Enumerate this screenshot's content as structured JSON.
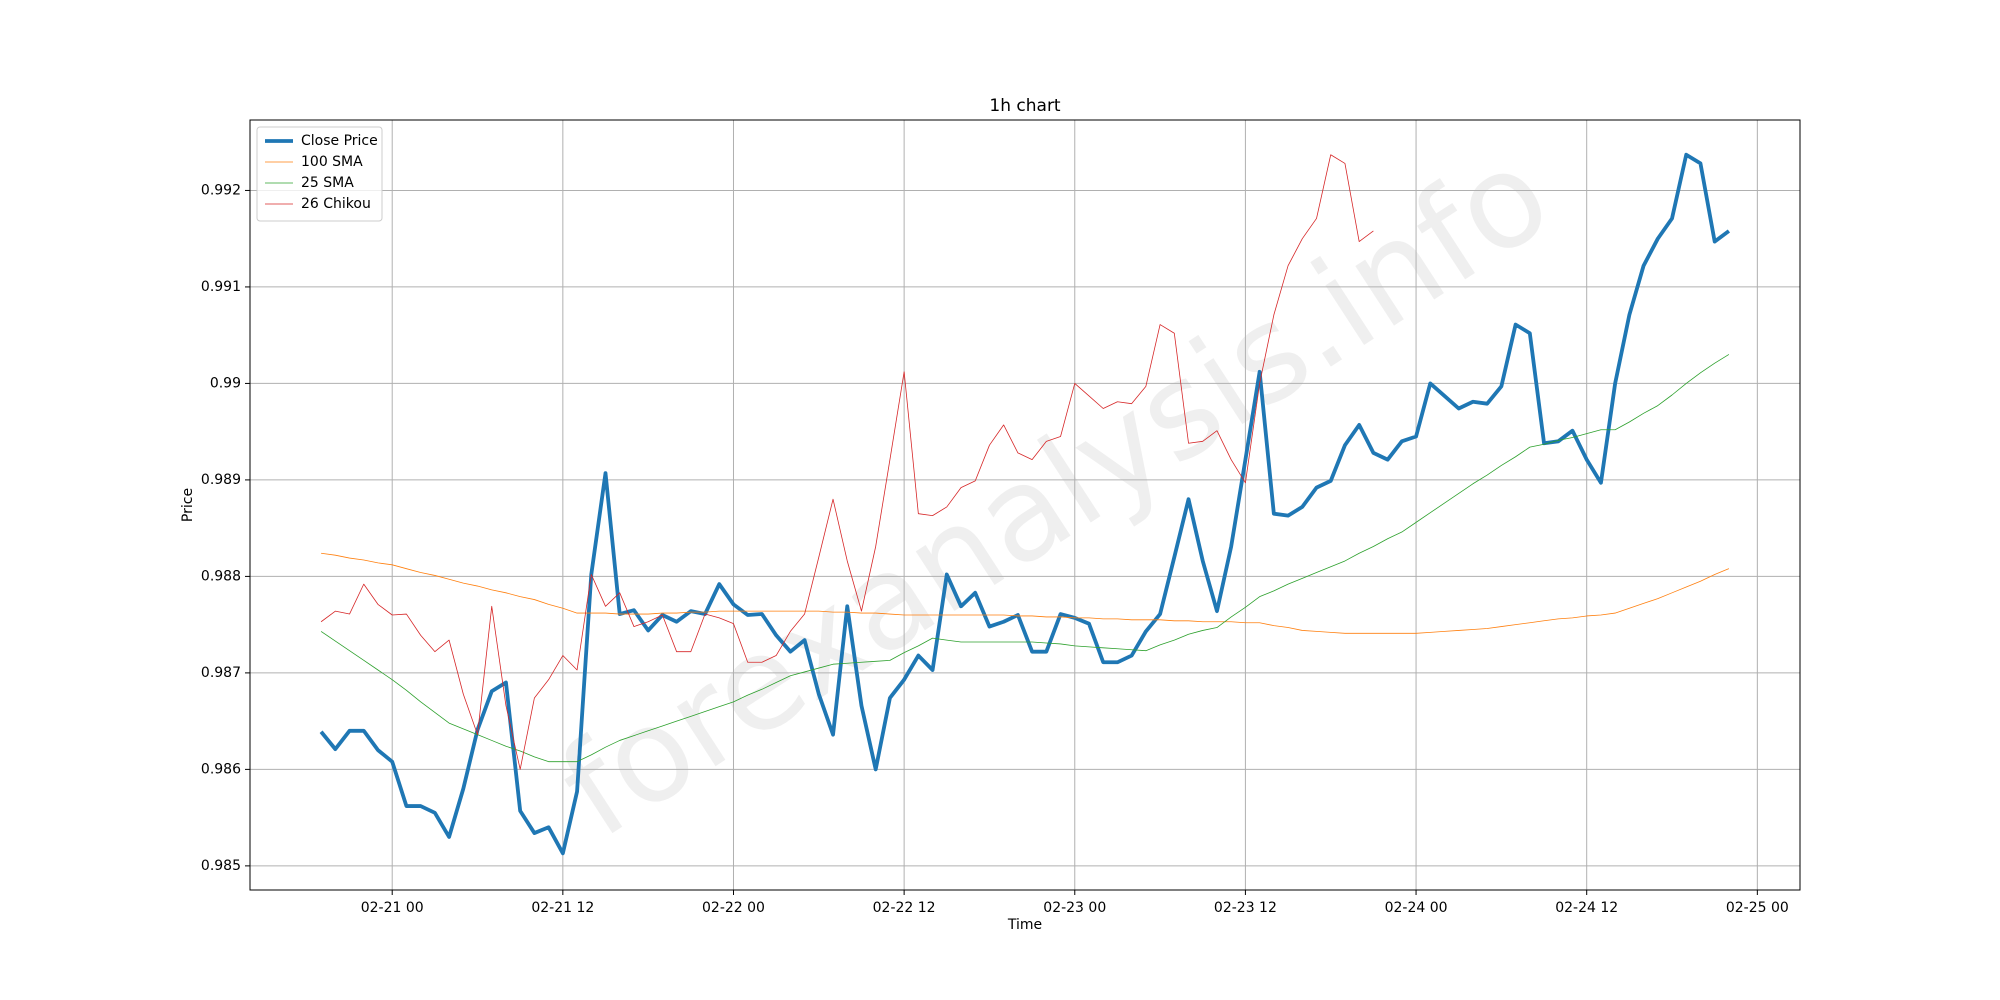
{
  "chart_data": {
    "type": "line",
    "title": "1h chart",
    "xlabel": "Time",
    "ylabel": "Price",
    "watermark": "forexanalysis.info",
    "x": [
      "02-20 19",
      "02-20 20",
      "02-20 21",
      "02-20 22",
      "02-20 23",
      "02-21 00",
      "02-21 01",
      "02-21 02",
      "02-21 03",
      "02-21 04",
      "02-21 05",
      "02-21 06",
      "02-21 07",
      "02-21 08",
      "02-21 09",
      "02-21 10",
      "02-21 11",
      "02-21 12",
      "02-21 13",
      "02-21 14",
      "02-21 15",
      "02-21 16",
      "02-21 17",
      "02-21 18",
      "02-21 19",
      "02-21 20",
      "02-21 21",
      "02-21 22",
      "02-21 23",
      "02-22 00",
      "02-22 01",
      "02-22 02",
      "02-22 03",
      "02-22 04",
      "02-22 05",
      "02-22 06",
      "02-22 07",
      "02-22 08",
      "02-22 09",
      "02-22 10",
      "02-22 11",
      "02-22 12",
      "02-22 13",
      "02-22 14",
      "02-22 15",
      "02-22 16",
      "02-22 17",
      "02-22 18",
      "02-22 19",
      "02-22 20",
      "02-22 21",
      "02-22 22",
      "02-22 23",
      "02-23 00",
      "02-23 01",
      "02-23 02",
      "02-23 03",
      "02-23 04",
      "02-23 05",
      "02-23 06",
      "02-23 07",
      "02-23 08",
      "02-23 09",
      "02-23 10",
      "02-23 11",
      "02-23 12",
      "02-23 13",
      "02-23 14",
      "02-23 15",
      "02-23 16",
      "02-23 17",
      "02-23 18",
      "02-23 19",
      "02-23 20",
      "02-23 21",
      "02-23 22",
      "02-23 23",
      "02-24 00",
      "02-24 01",
      "02-24 02",
      "02-24 03",
      "02-24 04",
      "02-24 05",
      "02-24 06",
      "02-24 07",
      "02-24 08",
      "02-24 09",
      "02-24 10",
      "02-24 11",
      "02-24 12",
      "02-24 13",
      "02-24 14",
      "02-24 15",
      "02-24 16",
      "02-24 17",
      "02-24 18",
      "02-24 19",
      "02-24 20",
      "02-24 21",
      "02-24 22"
    ],
    "series": [
      {
        "name": "Close Price",
        "color": "#1f77b4",
        "width": 3.8,
        "values": [
          0.98639,
          0.98621,
          0.9864,
          0.9864,
          0.9862,
          0.98608,
          0.98562,
          0.98562,
          0.98555,
          0.9853,
          0.9858,
          0.98641,
          0.98681,
          0.9869,
          0.98557,
          0.98534,
          0.9854,
          0.98513,
          0.98577,
          0.98802,
          0.98907,
          0.98761,
          0.98765,
          0.98744,
          0.9876,
          0.98753,
          0.98764,
          0.98761,
          0.98792,
          0.98771,
          0.9876,
          0.98761,
          0.98739,
          0.98722,
          0.98734,
          0.98678,
          0.98636,
          0.98769,
          0.98666,
          0.986,
          0.98674,
          0.98693,
          0.98718,
          0.98703,
          0.98802,
          0.98769,
          0.98783,
          0.98748,
          0.98753,
          0.9876,
          0.98722,
          0.98722,
          0.98761,
          0.98757,
          0.98751,
          0.98711,
          0.98711,
          0.98718,
          0.98743,
          0.98761,
          0.9882,
          0.9888,
          0.98816,
          0.98764,
          0.98831,
          0.98921,
          0.99012,
          0.98865,
          0.98863,
          0.98872,
          0.98892,
          0.98899,
          0.98936,
          0.98957,
          0.98928,
          0.98921,
          0.9894,
          0.98945,
          0.99,
          0.98987,
          0.98974,
          0.98981,
          0.98979,
          0.98997,
          0.99061,
          0.99052,
          0.98938,
          0.9894,
          0.98951,
          0.98921,
          0.98897,
          0.99,
          0.99071,
          0.99122,
          0.9915,
          0.99171,
          0.99237,
          0.99228,
          0.99147,
          0.99158
        ]
      },
      {
        "name": "100 SMA",
        "color": "#ff7f0e",
        "width": 0.8,
        "values": [
          0.98824,
          0.98822,
          0.98819,
          0.98817,
          0.98814,
          0.98812,
          0.98808,
          0.98804,
          0.98801,
          0.98797,
          0.98793,
          0.9879,
          0.98786,
          0.98783,
          0.98779,
          0.98776,
          0.98771,
          0.98767,
          0.98762,
          0.98762,
          0.98762,
          0.98761,
          0.98761,
          0.98761,
          0.98762,
          0.98762,
          0.98763,
          0.98763,
          0.98764,
          0.98764,
          0.98764,
          0.98764,
          0.98764,
          0.98764,
          0.98764,
          0.98764,
          0.98763,
          0.98763,
          0.98762,
          0.98762,
          0.98761,
          0.9876,
          0.9876,
          0.9876,
          0.9876,
          0.9876,
          0.9876,
          0.9876,
          0.9876,
          0.98759,
          0.98759,
          0.98758,
          0.98758,
          0.98757,
          0.98757,
          0.98756,
          0.98756,
          0.98755,
          0.98755,
          0.98755,
          0.98754,
          0.98754,
          0.98753,
          0.98753,
          0.98753,
          0.98752,
          0.98752,
          0.98749,
          0.98747,
          0.98744,
          0.98743,
          0.98742,
          0.98741,
          0.98741,
          0.98741,
          0.98741,
          0.98741,
          0.98741,
          0.98742,
          0.98743,
          0.98744,
          0.98745,
          0.98746,
          0.98748,
          0.9875,
          0.98752,
          0.98754,
          0.98756,
          0.98757,
          0.98759,
          0.9876,
          0.98762,
          0.98767,
          0.98772,
          0.98777,
          0.98783,
          0.98789,
          0.98795,
          0.98802,
          0.98808
        ]
      },
      {
        "name": "25 SMA",
        "color": "#2ca02c",
        "width": 0.8,
        "values": [
          0.98743,
          0.98733,
          0.98723,
          0.98713,
          0.98703,
          0.98693,
          0.98682,
          0.9867,
          0.98659,
          0.98648,
          0.98642,
          0.98636,
          0.9863,
          0.98624,
          0.98619,
          0.98613,
          0.98608,
          0.98608,
          0.98608,
          0.98615,
          0.98623,
          0.9863,
          0.98635,
          0.9864,
          0.98645,
          0.9865,
          0.98655,
          0.9866,
          0.98665,
          0.9867,
          0.98677,
          0.98683,
          0.9869,
          0.98697,
          0.98701,
          0.98705,
          0.98709,
          0.9871,
          0.98711,
          0.98712,
          0.98713,
          0.98721,
          0.98728,
          0.98736,
          0.98734,
          0.98732,
          0.98732,
          0.98732,
          0.98732,
          0.98732,
          0.98732,
          0.98731,
          0.9873,
          0.98728,
          0.98727,
          0.98726,
          0.98725,
          0.98724,
          0.98723,
          0.98729,
          0.98734,
          0.9874,
          0.98744,
          0.98747,
          0.98758,
          0.98768,
          0.98779,
          0.98785,
          0.98792,
          0.98798,
          0.98804,
          0.9881,
          0.98816,
          0.98824,
          0.98831,
          0.98839,
          0.98846,
          0.98856,
          0.98866,
          0.98876,
          0.98886,
          0.98896,
          0.98905,
          0.98915,
          0.98924,
          0.98934,
          0.98937,
          0.98941,
          0.98944,
          0.98948,
          0.98952,
          0.98952,
          0.9896,
          0.98969,
          0.98977,
          0.98988,
          0.99,
          0.99011,
          0.99021,
          0.9903
        ]
      },
      {
        "name": "26 Chikou",
        "color": "#d62728",
        "width": 0.8,
        "values": [
          0.98753,
          0.98764,
          0.98761,
          0.98792,
          0.98771,
          0.9876,
          0.98761,
          0.98739,
          0.98722,
          0.98734,
          0.98678,
          0.98636,
          0.98769,
          0.98666,
          0.986,
          0.98674,
          0.98693,
          0.98718,
          0.98703,
          0.98802,
          0.98769,
          0.98783,
          0.98748,
          0.98753,
          0.9876,
          0.98722,
          0.98722,
          0.98761,
          0.98757,
          0.98751,
          0.98711,
          0.98711,
          0.98718,
          0.98743,
          0.98761,
          0.9882,
          0.9888,
          0.98816,
          0.98764,
          0.98831,
          0.98921,
          0.99012,
          0.98865,
          0.98863,
          0.98872,
          0.98892,
          0.98899,
          0.98936,
          0.98957,
          0.98928,
          0.98921,
          0.9894,
          0.98945,
          0.99,
          0.98987,
          0.98974,
          0.98981,
          0.98979,
          0.98997,
          0.99061,
          0.99052,
          0.98938,
          0.9894,
          0.98951,
          0.98921,
          0.98897,
          0.99,
          0.99071,
          0.99122,
          0.9915,
          0.99171,
          0.99237,
          0.99228,
          0.99147,
          0.99158,
          null,
          null,
          null,
          null,
          null,
          null,
          null,
          null,
          null,
          null,
          null,
          null,
          null,
          null,
          null,
          null,
          null,
          null,
          null,
          null,
          null,
          null,
          null,
          null,
          null
        ]
      }
    ],
    "xlim": [
      "02-20 14",
      "02-25 03"
    ],
    "xticks": [
      "02-21 00",
      "02-21 12",
      "02-22 00",
      "02-22 12",
      "02-23 00",
      "02-23 12",
      "02-24 00",
      "02-24 12",
      "02-25 00"
    ],
    "ylim": [
      0.98475,
      0.99273
    ],
    "yticks": [
      0.985,
      0.986,
      0.987,
      0.988,
      0.989,
      0.99,
      0.991,
      0.992
    ],
    "grid": true,
    "legend": "upper left"
  }
}
